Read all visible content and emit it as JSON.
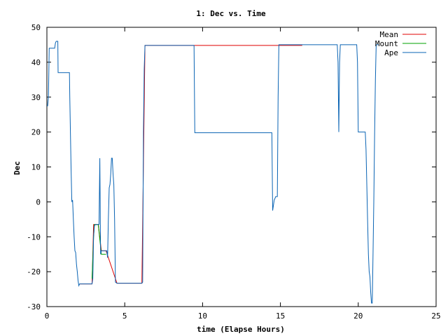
{
  "chart_data": {
    "type": "line",
    "title": "1: Dec vs. Time",
    "xlabel": "time (Elapse Hours)",
    "ylabel": "Dec",
    "xlim": [
      0,
      25
    ],
    "ylim": [
      -30,
      50
    ],
    "xticks": [
      0,
      5,
      10,
      15,
      20,
      25
    ],
    "yticks": [
      -30,
      -20,
      -10,
      0,
      10,
      20,
      30,
      40,
      50
    ],
    "grid": false,
    "legend": "top-right",
    "series": [
      {
        "name": "Mean",
        "color": "#e00000",
        "x": [
          2.1,
          2.9,
          3.0,
          3.3,
          3.5,
          3.8,
          4.5,
          6.1,
          6.3,
          9.4,
          14.8,
          16.4
        ],
        "y": [
          -23.5,
          -23.5,
          -6.5,
          -6.5,
          -14.0,
          -14.0,
          -23.3,
          -23.3,
          44.8,
          44.8,
          44.8,
          44.8
        ]
      },
      {
        "name": "Mount",
        "color": "#00a000",
        "x": [
          2.9,
          3.0,
          3.05,
          3.3,
          3.5,
          3.8
        ],
        "y": [
          -22.0,
          -10.0,
          -6.5,
          -6.5,
          -15.0,
          -15.0
        ]
      },
      {
        "name": "Ape",
        "color": "#0a64b4",
        "x": [
          0.0,
          0.05,
          0.1,
          0.15,
          0.2,
          0.5,
          0.55,
          0.6,
          0.7,
          0.72,
          1.45,
          1.47,
          1.55,
          1.6,
          1.65,
          1.7,
          1.75,
          1.8,
          1.85,
          1.9,
          1.95,
          2.0,
          2.05,
          2.1,
          2.15,
          2.9,
          2.95,
          3.0,
          3.05,
          3.1,
          3.35,
          3.4,
          3.45,
          3.5,
          3.55,
          3.6,
          3.85,
          3.9,
          3.95,
          4.0,
          4.05,
          4.1,
          4.15,
          4.2,
          4.25,
          4.3,
          4.35,
          4.4,
          4.5,
          4.52,
          6.1,
          6.15,
          6.2,
          6.25,
          6.3,
          6.32,
          9.4,
          9.45,
          9.5,
          14.4,
          14.45,
          14.5,
          14.55,
          14.6,
          14.65,
          14.7,
          14.8,
          14.85,
          14.9,
          14.95,
          15.0,
          18.6,
          18.65,
          18.7,
          18.75,
          18.8,
          18.85,
          18.9,
          19.2,
          19.3,
          19.35,
          19.4,
          19.6,
          19.9,
          19.95,
          20.0,
          20.4,
          20.45,
          20.5,
          20.55,
          20.6,
          20.65,
          20.7,
          20.75,
          20.8,
          20.85,
          20.9,
          20.95,
          21.0,
          21.05,
          21.1,
          21.15,
          21.2,
          21.25,
          21.3
        ],
        "y": [
          27.5,
          27.5,
          30.0,
          44.0,
          44.0,
          44.0,
          45.5,
          46.0,
          46.0,
          37.0,
          37.0,
          30.0,
          10.0,
          0.0,
          0.5,
          -5.0,
          -10.0,
          -14.0,
          -14.5,
          -18.0,
          -20.0,
          -22.5,
          -24.0,
          -23.5,
          -23.5,
          -23.5,
          -22.0,
          -10.0,
          -7.0,
          -6.5,
          -6.5,
          12.5,
          -15.0,
          -14.0,
          -14.0,
          -14.0,
          -14.0,
          -16.0,
          -5.0,
          4.0,
          5.0,
          8.0,
          12.5,
          12.5,
          8.0,
          5.0,
          -5.0,
          -23.0,
          -23.3,
          -23.3,
          -23.3,
          -23.0,
          20.0,
          38.0,
          44.8,
          44.8,
          44.8,
          44.8,
          19.8,
          19.8,
          19.8,
          -2.5,
          -1.0,
          0.5,
          1.0,
          1.5,
          1.5,
          30.0,
          45.0,
          45.0,
          45.0,
          45.0,
          45.0,
          40.0,
          20.0,
          40.0,
          45.0,
          45.0,
          45.0,
          45.0,
          45.0,
          45.0,
          45.0,
          45.0,
          40.0,
          20.0,
          20.0,
          20.0,
          15.0,
          5.0,
          -5.0,
          -15.0,
          -20.0,
          -21.5,
          -26.0,
          -29.0,
          -29.0,
          -15.0,
          0.0,
          20.0,
          35.0,
          45.0,
          45.0,
          45.0,
          45.0
        ]
      }
    ]
  }
}
